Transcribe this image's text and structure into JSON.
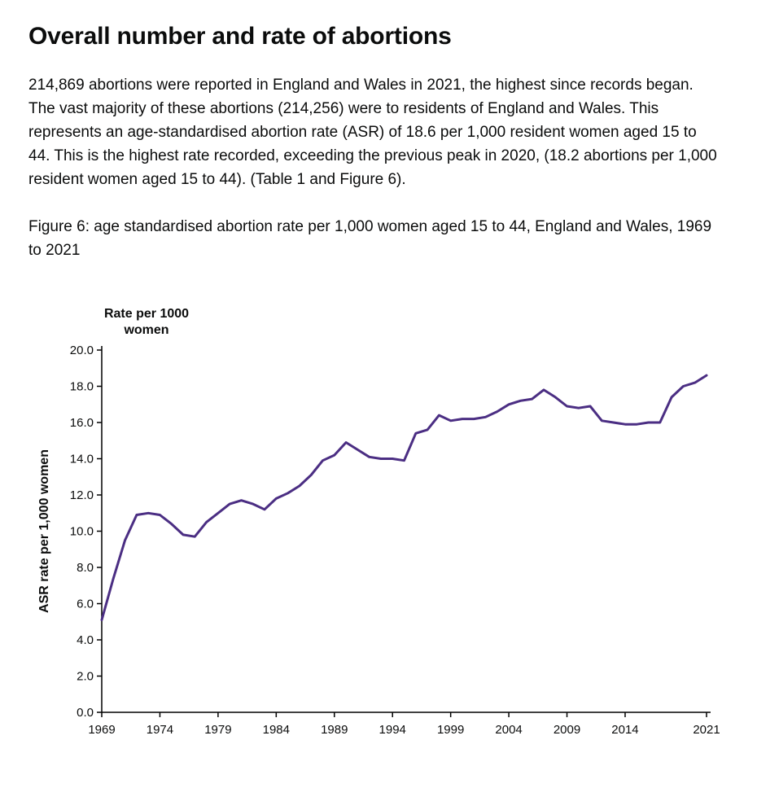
{
  "page": {
    "heading": "Overall number and rate of abortions",
    "paragraph": "214,869 abortions were reported in England and Wales in 2021, the highest since records began. The vast majority of these abortions (214,256) were to residents of England and Wales. This represents an age-standardised abortion rate (ASR) of 18.6 per 1,000 resident women aged 15 to 44. This is the highest rate recorded, exceeding the previous peak in 2020, (18.2 abortions per 1,000 resident women aged 15 to 44). (Table 1 and Figure 6).",
    "figure_caption": "Figure 6: age standardised abortion rate per 1,000 women aged 15 to 44, England and Wales, 1969 to 2021"
  },
  "colors": {
    "text": "#0b0c0c",
    "axis": "#000000",
    "line": "#4b2e83"
  },
  "chart_data": {
    "type": "line",
    "title": "Rate per 1000 women",
    "title_lines": [
      "Rate per 1000",
      "women"
    ],
    "ylabel": "ASR rate per 1,000 women",
    "xlabel": "",
    "ylim": [
      0,
      20
    ],
    "ytick_step": 2,
    "ytick_decimals": 1,
    "grid": false,
    "legend": "none",
    "line_color": "#4b2e83",
    "xticks": [
      1969,
      1974,
      1979,
      1984,
      1989,
      1994,
      1999,
      2004,
      2009,
      2014,
      2021
    ],
    "x": [
      1969,
      1970,
      1971,
      1972,
      1973,
      1974,
      1975,
      1976,
      1977,
      1978,
      1979,
      1980,
      1981,
      1982,
      1983,
      1984,
      1985,
      1986,
      1987,
      1988,
      1989,
      1990,
      1991,
      1992,
      1993,
      1994,
      1995,
      1996,
      1997,
      1998,
      1999,
      2000,
      2001,
      2002,
      2003,
      2004,
      2005,
      2006,
      2007,
      2008,
      2009,
      2010,
      2011,
      2012,
      2013,
      2014,
      2015,
      2016,
      2017,
      2018,
      2019,
      2020,
      2021
    ],
    "values": [
      5.1,
      7.4,
      9.5,
      10.9,
      11.0,
      10.9,
      10.4,
      9.8,
      9.7,
      10.5,
      11.0,
      11.5,
      11.7,
      11.5,
      11.2,
      11.8,
      12.1,
      12.5,
      13.1,
      13.9,
      14.2,
      14.9,
      14.5,
      14.1,
      14.0,
      14.0,
      13.9,
      15.4,
      15.6,
      16.4,
      16.1,
      16.2,
      16.2,
      16.3,
      16.6,
      17.0,
      17.2,
      17.3,
      17.8,
      17.4,
      16.9,
      16.8,
      16.9,
      16.1,
      16.0,
      15.9,
      15.9,
      16.0,
      16.0,
      17.4,
      18.0,
      18.2,
      18.6
    ]
  }
}
